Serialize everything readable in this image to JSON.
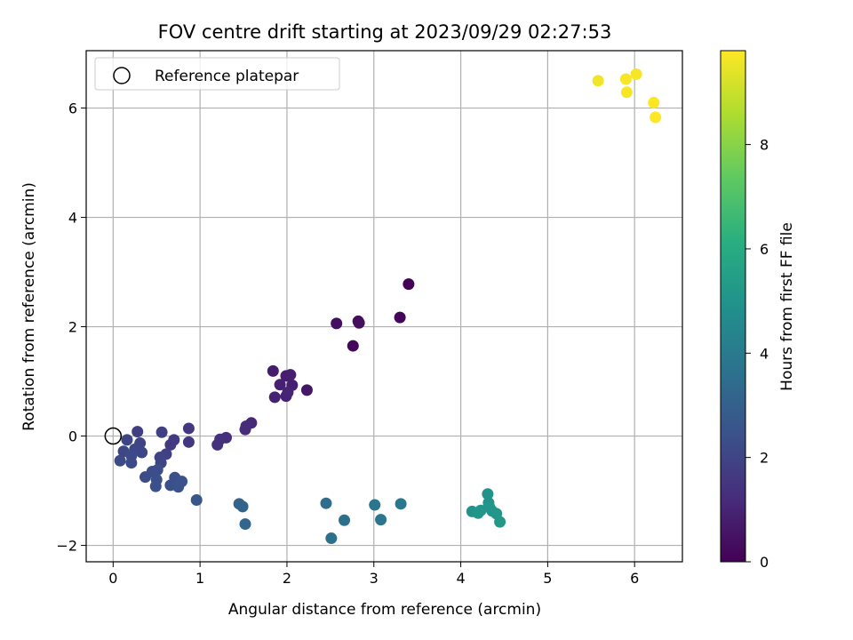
{
  "chart_data": {
    "type": "scatter",
    "title": "FOV centre drift starting at 2023/09/29 02:27:53",
    "xlabel": "Angular distance from reference (arcmin)",
    "ylabel": "Rotation from reference (arcmin)",
    "xlim": [
      -0.31,
      6.55
    ],
    "ylim": [
      -2.3,
      7.05
    ],
    "xticks": [
      0,
      1,
      2,
      3,
      4,
      5,
      6
    ],
    "yticks": [
      -2,
      0,
      2,
      4,
      6
    ],
    "grid": true,
    "legend": {
      "placement": "upper-left",
      "entries": [
        "Reference platepar"
      ]
    },
    "reference_point": {
      "x": 0,
      "y": 0
    },
    "colorbar": {
      "label": "Hours from first FF file",
      "colormap": "viridis",
      "range": [
        0,
        9.8
      ],
      "ticks": [
        0,
        2,
        4,
        6,
        8
      ]
    },
    "points": [
      {
        "x": 3.4,
        "y": 2.78,
        "c": 0.05
      },
      {
        "x": 3.3,
        "y": 2.17,
        "c": 0.15
      },
      {
        "x": 2.82,
        "y": 2.1,
        "c": 0.3
      },
      {
        "x": 2.83,
        "y": 2.07,
        "c": 0.35
      },
      {
        "x": 2.57,
        "y": 2.06,
        "c": 0.4
      },
      {
        "x": 2.76,
        "y": 1.65,
        "c": 0.2
      },
      {
        "x": 1.84,
        "y": 1.19,
        "c": 0.75
      },
      {
        "x": 1.99,
        "y": 1.1,
        "c": 0.8
      },
      {
        "x": 2.04,
        "y": 1.12,
        "c": 0.85
      },
      {
        "x": 1.92,
        "y": 0.94,
        "c": 0.9
      },
      {
        "x": 2.06,
        "y": 0.93,
        "c": 0.9
      },
      {
        "x": 2.23,
        "y": 0.84,
        "c": 0.6
      },
      {
        "x": 1.86,
        "y": 0.71,
        "c": 0.95
      },
      {
        "x": 1.99,
        "y": 0.73,
        "c": 0.95
      },
      {
        "x": 2.01,
        "y": 0.8,
        "c": 1.0
      },
      {
        "x": 1.59,
        "y": 0.24,
        "c": 1.1
      },
      {
        "x": 1.53,
        "y": 0.18,
        "c": 1.2
      },
      {
        "x": 1.52,
        "y": 0.12,
        "c": 1.2
      },
      {
        "x": 1.3,
        "y": -0.03,
        "c": 1.3
      },
      {
        "x": 1.23,
        "y": -0.06,
        "c": 1.4
      },
      {
        "x": 1.2,
        "y": -0.16,
        "c": 1.4
      },
      {
        "x": 0.87,
        "y": 0.14,
        "c": 1.6
      },
      {
        "x": 0.87,
        "y": -0.11,
        "c": 1.6
      },
      {
        "x": 0.7,
        "y": -0.07,
        "c": 1.7
      },
      {
        "x": 0.66,
        "y": -0.16,
        "c": 1.7
      },
      {
        "x": 0.56,
        "y": 0.07,
        "c": 1.9
      },
      {
        "x": 0.61,
        "y": -0.33,
        "c": 1.9
      },
      {
        "x": 0.54,
        "y": -0.39,
        "c": 2.0
      },
      {
        "x": 0.55,
        "y": -0.49,
        "c": 2.0
      },
      {
        "x": 0.28,
        "y": 0.08,
        "c": 1.8
      },
      {
        "x": 0.16,
        "y": -0.07,
        "c": 2.0
      },
      {
        "x": 0.31,
        "y": -0.13,
        "c": 2.0
      },
      {
        "x": 0.25,
        "y": -0.24,
        "c": 2.1
      },
      {
        "x": 0.12,
        "y": -0.28,
        "c": 2.1
      },
      {
        "x": 0.33,
        "y": -0.3,
        "c": 2.1
      },
      {
        "x": 0.21,
        "y": -0.36,
        "c": 2.2
      },
      {
        "x": 0.08,
        "y": -0.45,
        "c": 2.2
      },
      {
        "x": 0.21,
        "y": -0.49,
        "c": 2.2
      },
      {
        "x": 0.37,
        "y": -0.75,
        "c": 2.3
      },
      {
        "x": 0.45,
        "y": -0.65,
        "c": 2.3
      },
      {
        "x": 0.51,
        "y": -0.62,
        "c": 2.3
      },
      {
        "x": 0.5,
        "y": -0.8,
        "c": 2.4
      },
      {
        "x": 0.49,
        "y": -0.92,
        "c": 2.4
      },
      {
        "x": 0.66,
        "y": -0.9,
        "c": 2.4
      },
      {
        "x": 0.71,
        "y": -0.76,
        "c": 2.4
      },
      {
        "x": 0.79,
        "y": -0.83,
        "c": 2.5
      },
      {
        "x": 0.75,
        "y": -0.93,
        "c": 2.5
      },
      {
        "x": 0.96,
        "y": -1.17,
        "c": 2.6
      },
      {
        "x": 1.45,
        "y": -1.24,
        "c": 3.1
      },
      {
        "x": 1.49,
        "y": -1.29,
        "c": 3.1
      },
      {
        "x": 1.52,
        "y": -1.61,
        "c": 3.2
      },
      {
        "x": 2.45,
        "y": -1.23,
        "c": 3.5
      },
      {
        "x": 2.66,
        "y": -1.54,
        "c": 3.6
      },
      {
        "x": 2.51,
        "y": -1.87,
        "c": 3.6
      },
      {
        "x": 3.01,
        "y": -1.26,
        "c": 3.8
      },
      {
        "x": 3.08,
        "y": -1.53,
        "c": 3.8
      },
      {
        "x": 3.31,
        "y": -1.24,
        "c": 3.9
      },
      {
        "x": 4.31,
        "y": -1.06,
        "c": 5.0
      },
      {
        "x": 4.32,
        "y": -1.22,
        "c": 5.0
      },
      {
        "x": 4.13,
        "y": -1.38,
        "c": 5.0
      },
      {
        "x": 4.2,
        "y": -1.41,
        "c": 5.1
      },
      {
        "x": 4.23,
        "y": -1.36,
        "c": 5.1
      },
      {
        "x": 4.33,
        "y": -1.3,
        "c": 5.1
      },
      {
        "x": 4.36,
        "y": -1.37,
        "c": 5.1
      },
      {
        "x": 4.41,
        "y": -1.42,
        "c": 5.1
      },
      {
        "x": 4.45,
        "y": -1.57,
        "c": 5.2
      },
      {
        "x": 5.58,
        "y": 6.5,
        "c": 9.6
      },
      {
        "x": 5.9,
        "y": 6.53,
        "c": 9.7
      },
      {
        "x": 6.02,
        "y": 6.62,
        "c": 9.7
      },
      {
        "x": 5.91,
        "y": 6.29,
        "c": 9.7
      },
      {
        "x": 6.22,
        "y": 6.1,
        "c": 9.8
      },
      {
        "x": 6.24,
        "y": 5.83,
        "c": 9.8
      }
    ]
  }
}
